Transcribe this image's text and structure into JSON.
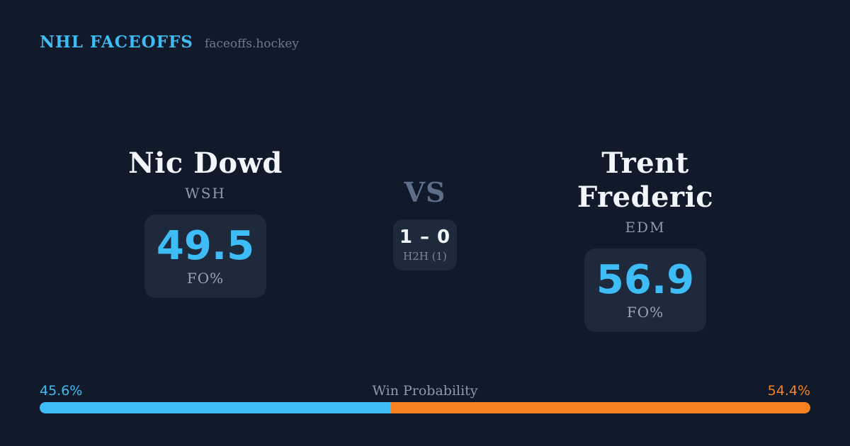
{
  "header": {
    "brand": "NHL FACEOFFS",
    "domain": "faceoffs.hockey"
  },
  "matchup": {
    "vs_label": "VS",
    "h2h": {
      "score": "1 – 0",
      "label": "H2H (1)"
    },
    "players": [
      {
        "name": "Nic Dowd",
        "team": "WSH",
        "stat_value": "49.5",
        "stat_label": "FO%"
      },
      {
        "name": "Trent Frederic",
        "team": "EDM",
        "stat_value": "56.9",
        "stat_label": "FO%"
      }
    ]
  },
  "win_probability": {
    "title": "Win Probability",
    "left": {
      "value": "45.6%"
    },
    "right": {
      "value": "54.4%"
    }
  },
  "colors": {
    "background": "#111a2b",
    "card": "#1e2a3c",
    "accent-blue": "#3dbcf5",
    "accent-orange": "#f5821f",
    "text-primary": "#f2f5f9",
    "text-muted": "#8e99ab",
    "text-label": "#9aa4b4",
    "text-dim": "#5d6e88",
    "text-dimmer": "#6e7a8c",
    "text-dimmer2": "#7b8699"
  }
}
